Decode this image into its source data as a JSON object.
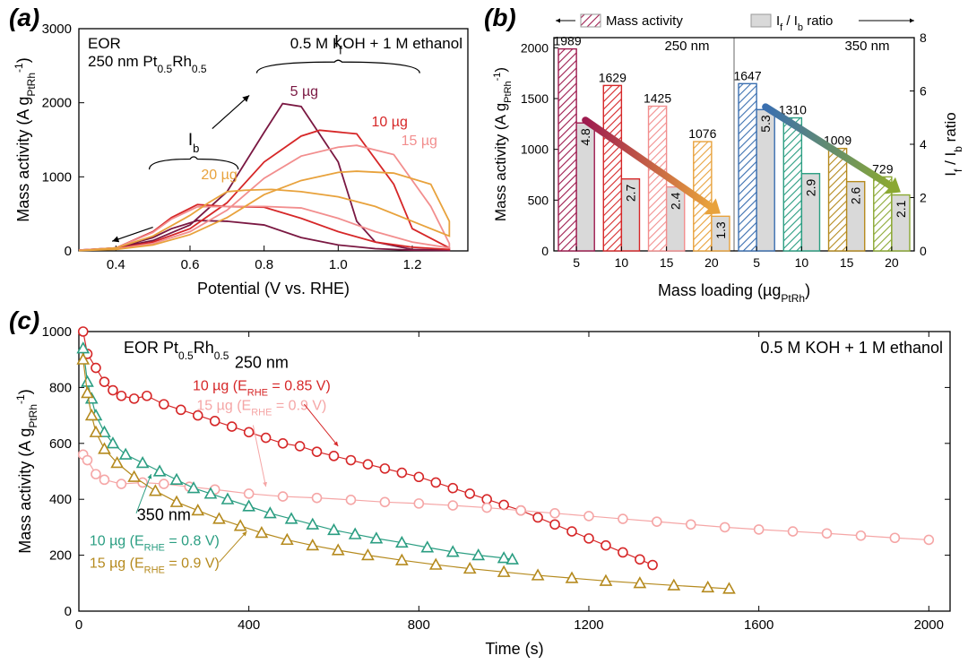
{
  "global": {
    "figure_width": 1080,
    "figure_height": 741,
    "background": "#ffffff",
    "font_family": "Arial"
  },
  "panelA": {
    "label": "(a)",
    "type": "line",
    "title_lines": [
      "EOR",
      "250 nm Pt₀.₅Rh₀.₅"
    ],
    "condition": "0.5 M KOH + 1 M ethanol",
    "xlabel": "Potential (V vs. RHE)",
    "ylabel": "Mass activity (A g_PtRh⁻¹)",
    "ylabel_sub": "PtRh",
    "xlim": [
      0.3,
      1.35
    ],
    "ylim": [
      0,
      3000
    ],
    "xticks": [
      0.4,
      0.6,
      0.8,
      1.0,
      1.2
    ],
    "yticks": [
      0,
      1000,
      2000,
      3000
    ],
    "line_width": 1.8,
    "bracket_labels": {
      "If": "I_f",
      "Ib": "I_b"
    },
    "series": [
      {
        "label": "5 µg",
        "color": "#7a1842",
        "fwd": [
          [
            0.3,
            10
          ],
          [
            0.4,
            40
          ],
          [
            0.5,
            140
          ],
          [
            0.6,
            350
          ],
          [
            0.7,
            800
          ],
          [
            0.8,
            1600
          ],
          [
            0.85,
            1989
          ],
          [
            0.9,
            1950
          ],
          [
            1.0,
            1200
          ],
          [
            1.05,
            400
          ],
          [
            1.1,
            120
          ],
          [
            1.2,
            20
          ],
          [
            1.3,
            10
          ]
        ],
        "rev": [
          [
            1.3,
            5
          ],
          [
            1.2,
            10
          ],
          [
            1.1,
            30
          ],
          [
            1.0,
            80
          ],
          [
            0.9,
            180
          ],
          [
            0.8,
            350
          ],
          [
            0.7,
            400
          ],
          [
            0.62,
            410
          ],
          [
            0.55,
            300
          ],
          [
            0.5,
            180
          ],
          [
            0.4,
            40
          ],
          [
            0.3,
            10
          ]
        ]
      },
      {
        "label": "10 µg",
        "color": "#d62728",
        "fwd": [
          [
            0.3,
            10
          ],
          [
            0.4,
            30
          ],
          [
            0.5,
            120
          ],
          [
            0.6,
            300
          ],
          [
            0.7,
            650
          ],
          [
            0.8,
            1200
          ],
          [
            0.9,
            1550
          ],
          [
            0.95,
            1629
          ],
          [
            1.05,
            1580
          ],
          [
            1.15,
            900
          ],
          [
            1.2,
            300
          ],
          [
            1.3,
            40
          ]
        ],
        "rev": [
          [
            1.3,
            20
          ],
          [
            1.2,
            50
          ],
          [
            1.1,
            120
          ],
          [
            1.0,
            260
          ],
          [
            0.9,
            440
          ],
          [
            0.8,
            590
          ],
          [
            0.7,
            600
          ],
          [
            0.62,
            625
          ],
          [
            0.55,
            450
          ],
          [
            0.5,
            260
          ],
          [
            0.4,
            40
          ],
          [
            0.3,
            10
          ]
        ]
      },
      {
        "label": "15 µg",
        "color": "#f28e8e",
        "fwd": [
          [
            0.3,
            10
          ],
          [
            0.4,
            25
          ],
          [
            0.5,
            100
          ],
          [
            0.6,
            260
          ],
          [
            0.7,
            550
          ],
          [
            0.8,
            980
          ],
          [
            0.9,
            1280
          ],
          [
            1.0,
            1400
          ],
          [
            1.05,
            1425
          ],
          [
            1.15,
            1300
          ],
          [
            1.25,
            600
          ],
          [
            1.3,
            100
          ]
        ],
        "rev": [
          [
            1.3,
            40
          ],
          [
            1.2,
            120
          ],
          [
            1.1,
            260
          ],
          [
            1.0,
            440
          ],
          [
            0.9,
            580
          ],
          [
            0.8,
            600
          ],
          [
            0.7,
            600
          ],
          [
            0.62,
            595
          ],
          [
            0.55,
            430
          ],
          [
            0.5,
            250
          ],
          [
            0.4,
            40
          ],
          [
            0.3,
            10
          ]
        ]
      },
      {
        "label": "20 µg",
        "color": "#e8a23c",
        "fwd": [
          [
            0.3,
            5
          ],
          [
            0.4,
            20
          ],
          [
            0.5,
            80
          ],
          [
            0.6,
            220
          ],
          [
            0.7,
            450
          ],
          [
            0.8,
            760
          ],
          [
            0.9,
            950
          ],
          [
            1.0,
            1060
          ],
          [
            1.05,
            1076
          ],
          [
            1.15,
            1050
          ],
          [
            1.25,
            900
          ],
          [
            1.3,
            400
          ]
        ],
        "rev": [
          [
            1.3,
            200
          ],
          [
            1.2,
            400
          ],
          [
            1.1,
            600
          ],
          [
            1.0,
            730
          ],
          [
            0.9,
            800
          ],
          [
            0.82,
            830
          ],
          [
            0.75,
            820
          ],
          [
            0.7,
            800
          ],
          [
            0.65,
            650
          ],
          [
            0.6,
            480
          ],
          [
            0.5,
            200
          ],
          [
            0.4,
            40
          ],
          [
            0.3,
            5
          ]
        ]
      }
    ]
  },
  "panelB": {
    "label": "(b)",
    "type": "bar",
    "legend": {
      "mass": "Mass activity",
      "ratio": "I_f / I_b ratio"
    },
    "xlabel": "Mass loading (µg_PtRh)",
    "xlabel_sub": "PtRh",
    "ylabel_left": "Mass activity (A g_PtRh⁻¹)",
    "ylabel_right": "I_f / I_b ratio",
    "section_labels": [
      "250 nm",
      "350 nm"
    ],
    "xticks": [
      5,
      10,
      15,
      20,
      5,
      10,
      15,
      20
    ],
    "yticks_left": [
      0,
      500,
      1000,
      1500,
      2000
    ],
    "yticks_right": [
      0,
      2,
      4,
      6,
      8
    ],
    "ylim_left": [
      0,
      2100
    ],
    "ylim_right": [
      0,
      8
    ],
    "bar_width": 0.38,
    "ratio_bar_color": "#d9d9d9",
    "ratio_text_color": "#000000",
    "hatch": "///",
    "bars": [
      {
        "x": 0,
        "mass": 1989,
        "ratio": 4.8,
        "color": "#9e1b4f"
      },
      {
        "x": 1,
        "mass": 1629,
        "ratio": 2.7,
        "color": "#d62728"
      },
      {
        "x": 2,
        "mass": 1425,
        "ratio": 2.4,
        "color": "#f28e8e"
      },
      {
        "x": 3,
        "mass": 1076,
        "ratio": 1.3,
        "color": "#e8a23c"
      },
      {
        "x": 4,
        "mass": 1647,
        "ratio": 5.3,
        "color": "#3a6fb0"
      },
      {
        "x": 5,
        "mass": 1310,
        "ratio": 2.9,
        "color": "#2b9e82"
      },
      {
        "x": 6,
        "mass": 1009,
        "ratio": 2.6,
        "color": "#b58a1e"
      },
      {
        "x": 7,
        "mass": 729,
        "ratio": 2.1,
        "color": "#8aa832"
      }
    ],
    "arrows": [
      {
        "colors": [
          "#9e1b4f",
          "#e8a23c"
        ],
        "from_i": 0,
        "to_i": 3
      },
      {
        "colors": [
          "#3a6fb0",
          "#8aa832"
        ],
        "from_i": 4,
        "to_i": 7
      }
    ]
  },
  "panelC": {
    "label": "(c)",
    "type": "scatter-line",
    "title": "EOR  Pt₀.₅Rh₀.₅",
    "condition": "0.5 M KOH + 1 M ethanol",
    "xlabel": "Time (s)",
    "ylabel": "Mass activity (A g_PtRh⁻¹)",
    "xlim": [
      0,
      2050
    ],
    "ylim": [
      0,
      1000
    ],
    "xticks": [
      0,
      400,
      800,
      1200,
      1600,
      2000
    ],
    "yticks": [
      0,
      200,
      400,
      600,
      800,
      1000
    ],
    "marker_size": 5,
    "line_width": 1.2,
    "group_labels": {
      "g250": "250 nm",
      "g350": "350 nm"
    },
    "series": [
      {
        "label": "10 µg (E_RHE = 0.85 V)",
        "group": "250 nm",
        "marker": "circle",
        "color": "#d62728",
        "open": true,
        "x": [
          10,
          20,
          40,
          60,
          80,
          100,
          130,
          160,
          200,
          240,
          280,
          320,
          360,
          400,
          440,
          480,
          520,
          560,
          600,
          640,
          680,
          720,
          760,
          800,
          840,
          880,
          920,
          960,
          1000,
          1040,
          1080,
          1120,
          1160,
          1200,
          1240,
          1280,
          1320,
          1350
        ],
        "y": [
          1000,
          920,
          870,
          820,
          790,
          770,
          760,
          770,
          740,
          720,
          700,
          680,
          660,
          640,
          620,
          600,
          590,
          570,
          555,
          540,
          525,
          510,
          495,
          480,
          460,
          440,
          420,
          400,
          380,
          360,
          335,
          310,
          285,
          260,
          235,
          210,
          185,
          165
        ]
      },
      {
        "label": "15 µg (E_RHE = 0.9 V)",
        "group": "250 nm",
        "marker": "circle",
        "color": "#f5a6a6",
        "open": true,
        "x": [
          10,
          20,
          40,
          60,
          100,
          150,
          200,
          260,
          320,
          400,
          480,
          560,
          640,
          720,
          800,
          880,
          960,
          1040,
          1120,
          1200,
          1280,
          1360,
          1440,
          1520,
          1600,
          1680,
          1760,
          1840,
          1920,
          2000
        ],
        "y": [
          560,
          540,
          490,
          470,
          455,
          460,
          455,
          445,
          435,
          420,
          410,
          405,
          398,
          390,
          385,
          378,
          370,
          360,
          350,
          340,
          330,
          320,
          310,
          300,
          292,
          285,
          278,
          270,
          262,
          255
        ]
      },
      {
        "label": "10 µg (E_RHE = 0.8 V)",
        "group": "350 nm",
        "marker": "triangle",
        "color": "#2b9e82",
        "open": true,
        "x": [
          10,
          20,
          30,
          40,
          60,
          80,
          110,
          150,
          190,
          230,
          270,
          310,
          350,
          400,
          450,
          500,
          550,
          600,
          650,
          700,
          760,
          820,
          880,
          940,
          1000,
          1020
        ],
        "y": [
          940,
          820,
          760,
          700,
          640,
          600,
          560,
          530,
          500,
          470,
          440,
          420,
          400,
          375,
          350,
          330,
          310,
          290,
          275,
          260,
          245,
          228,
          212,
          200,
          190,
          185
        ]
      },
      {
        "label": "15 µg (E_RHE = 0.9 V)",
        "group": "350 nm",
        "marker": "triangle",
        "color": "#b58a1e",
        "open": true,
        "x": [
          10,
          20,
          30,
          40,
          60,
          90,
          130,
          180,
          230,
          280,
          330,
          380,
          430,
          490,
          550,
          610,
          680,
          760,
          840,
          920,
          1000,
          1080,
          1160,
          1240,
          1320,
          1400,
          1480,
          1530
        ],
        "y": [
          900,
          780,
          700,
          640,
          580,
          530,
          480,
          430,
          390,
          360,
          330,
          305,
          280,
          255,
          235,
          218,
          200,
          182,
          166,
          152,
          140,
          128,
          118,
          108,
          100,
          92,
          85,
          80
        ]
      }
    ]
  }
}
